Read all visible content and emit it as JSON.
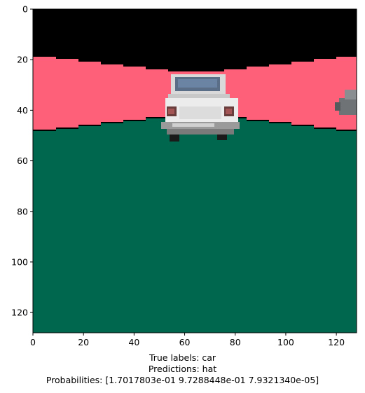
{
  "image": {
    "description_colors": {
      "sky": "#000000",
      "horizon_band": "#ff6079",
      "ground": "#00674f",
      "car_body": "#e6e6e6",
      "car_window": "#5a6e88",
      "car_shadow": "#8c8c8c",
      "wheel": "#1a1a1a"
    },
    "x_ticks": [
      "0",
      "20",
      "40",
      "60",
      "80",
      "100",
      "120"
    ],
    "y_ticks": [
      "0",
      "20",
      "40",
      "60",
      "80",
      "100",
      "120"
    ],
    "x_range": [
      0,
      128
    ],
    "y_range": [
      0,
      128
    ]
  },
  "caption": {
    "true_labels": "True labels: car",
    "predictions": "Predictions: hat",
    "probabilities": "Probabilities: [1.7017803e-01 9.7288448e-01 7.9321340e-05]"
  }
}
